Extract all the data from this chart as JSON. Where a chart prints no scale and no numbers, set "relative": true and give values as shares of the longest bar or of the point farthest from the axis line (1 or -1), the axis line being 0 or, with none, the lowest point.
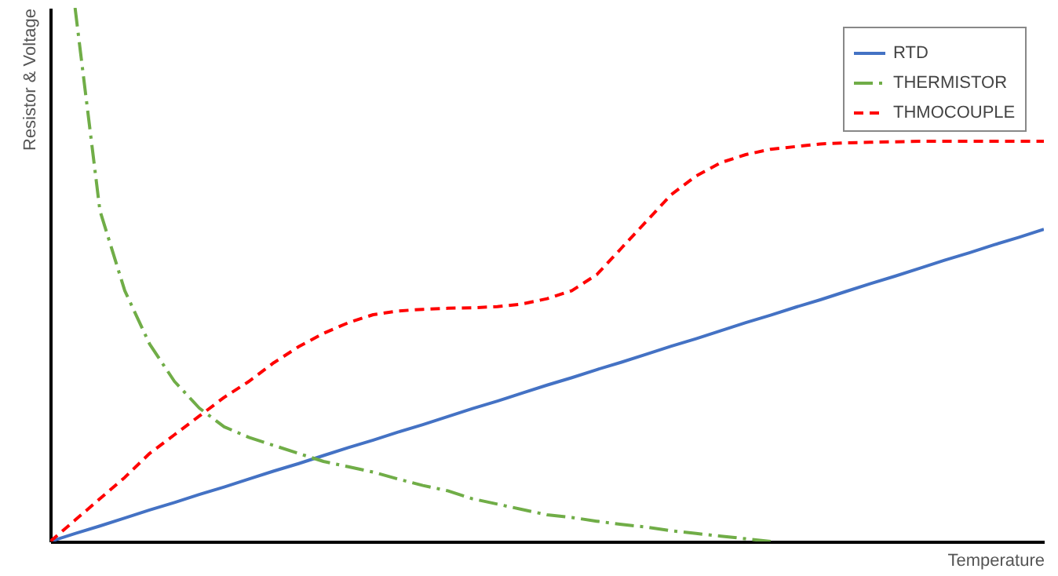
{
  "chart_data": {
    "type": "line",
    "relative": true,
    "xlabel": "Temperature",
    "ylabel": "Resistor  & Voltage",
    "legend": "top right",
    "tick_labels": false,
    "categories": [
      null,
      null,
      null,
      null,
      null,
      null,
      null,
      null,
      null,
      null,
      null,
      null,
      null,
      null,
      null,
      null,
      null,
      null,
      null,
      null,
      null,
      null,
      null,
      null,
      null,
      null,
      null,
      null,
      null,
      null,
      null,
      null,
      null,
      null,
      null,
      null,
      null,
      null,
      null,
      null,
      null
    ],
    "series": [
      {
        "name": "RTD",
        "color": "#4472c4",
        "line_style": "solid",
        "values": [
          0,
          0.015,
          0.029,
          0.044,
          0.059,
          0.073,
          0.088,
          0.102,
          0.117,
          0.132,
          0.146,
          0.161,
          0.176,
          0.19,
          0.205,
          0.219,
          0.234,
          0.249,
          0.263,
          0.278,
          0.293,
          0.307,
          0.322,
          0.336,
          0.351,
          0.366,
          0.38,
          0.395,
          0.41,
          0.424,
          0.439,
          0.453,
          0.468,
          0.483,
          0.497,
          0.512,
          0.527,
          0.541,
          0.556,
          0.57,
          0.585
        ]
      },
      {
        "name": "THERMISTOR",
        "color": "#70ad47",
        "line_style": "dashdot",
        "values": [
          null,
          1.0,
          0.62,
          0.47,
          0.37,
          0.3,
          0.25,
          0.215,
          0.195,
          0.18,
          0.165,
          0.15,
          0.14,
          0.13,
          0.117,
          0.105,
          0.095,
          0.08,
          0.07,
          0.06,
          0.05,
          0.045,
          0.038,
          0.032,
          0.027,
          0.02,
          0.015,
          0.01,
          0.005,
          0,
          null,
          null,
          null,
          null,
          null,
          null,
          null,
          null,
          null,
          null,
          null
        ]
      },
      {
        "name": "THMOCOUPLE",
        "color": "#ff0000",
        "line_style": "dashed",
        "values": [
          0,
          0.04,
          0.08,
          0.12,
          0.165,
          0.2,
          0.235,
          0.27,
          0.3,
          0.335,
          0.365,
          0.39,
          0.41,
          0.425,
          0.432,
          0.435,
          0.437,
          0.438,
          0.44,
          0.445,
          0.455,
          0.47,
          0.5,
          0.55,
          0.6,
          0.65,
          0.685,
          0.71,
          0.725,
          0.735,
          0.74,
          0.745,
          0.747,
          0.748,
          0.749,
          0.75,
          0.75,
          0.75,
          0.75,
          0.75,
          0.75
        ]
      }
    ]
  }
}
